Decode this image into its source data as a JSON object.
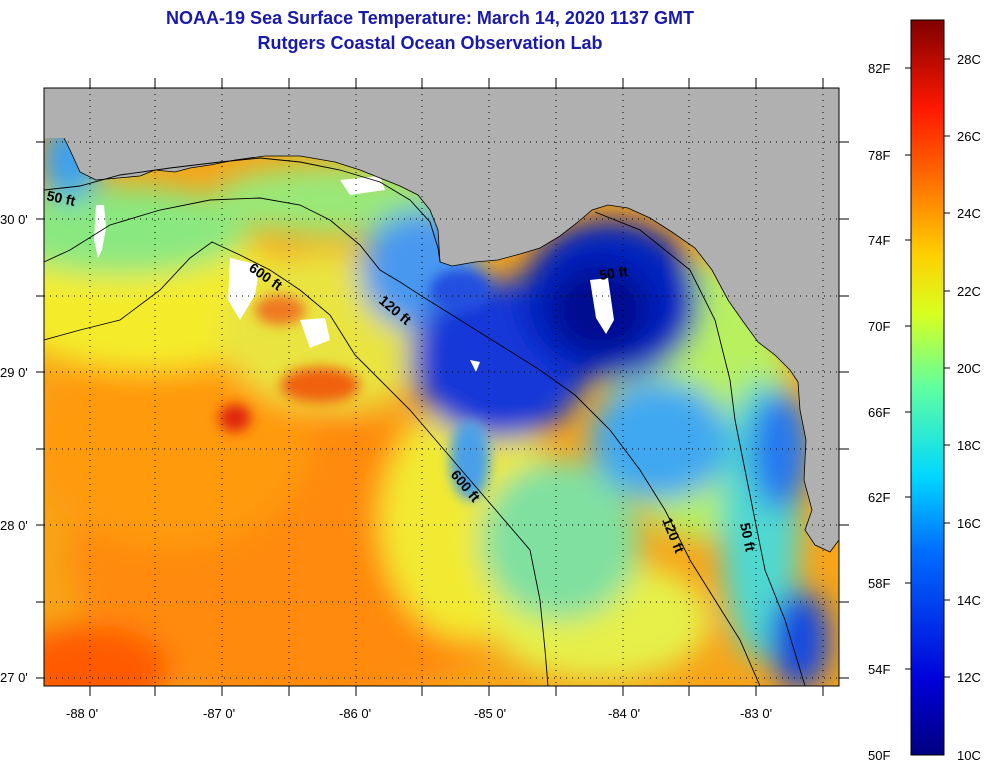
{
  "title": {
    "line1": "NOAA-19 Sea Surface Temperature:  March 14, 2020 1137 GMT",
    "line2": "Rutgers Coastal Ocean Observation Lab"
  },
  "map": {
    "lat_labels": [
      "30 0'",
      "29 0'",
      "28 0'",
      "27 0'"
    ],
    "lon_labels": [
      "-88 0'",
      "-87 0'",
      "-86 0'",
      "-85 0'",
      "-84 0'",
      "-83 0'"
    ],
    "contours": [
      {
        "label": "50 ft"
      },
      {
        "label": "600 ft"
      },
      {
        "label": "120 ft"
      },
      {
        "label": "50 ft"
      },
      {
        "label": "600 ft"
      },
      {
        "label": "120 ft"
      },
      {
        "label": "50 ft"
      }
    ],
    "land_color": "#b0b0b0",
    "cloud_color": "#ffffff"
  },
  "colorbar": {
    "f_labels": [
      "82F",
      "78F",
      "74F",
      "70F",
      "66F",
      "62F",
      "58F",
      "54F",
      "50F"
    ],
    "c_labels": [
      "28C",
      "26C",
      "24C",
      "22C",
      "20C",
      "18C",
      "16C",
      "14C",
      "12C",
      "10C"
    ],
    "range_c": [
      10,
      29
    ]
  }
}
